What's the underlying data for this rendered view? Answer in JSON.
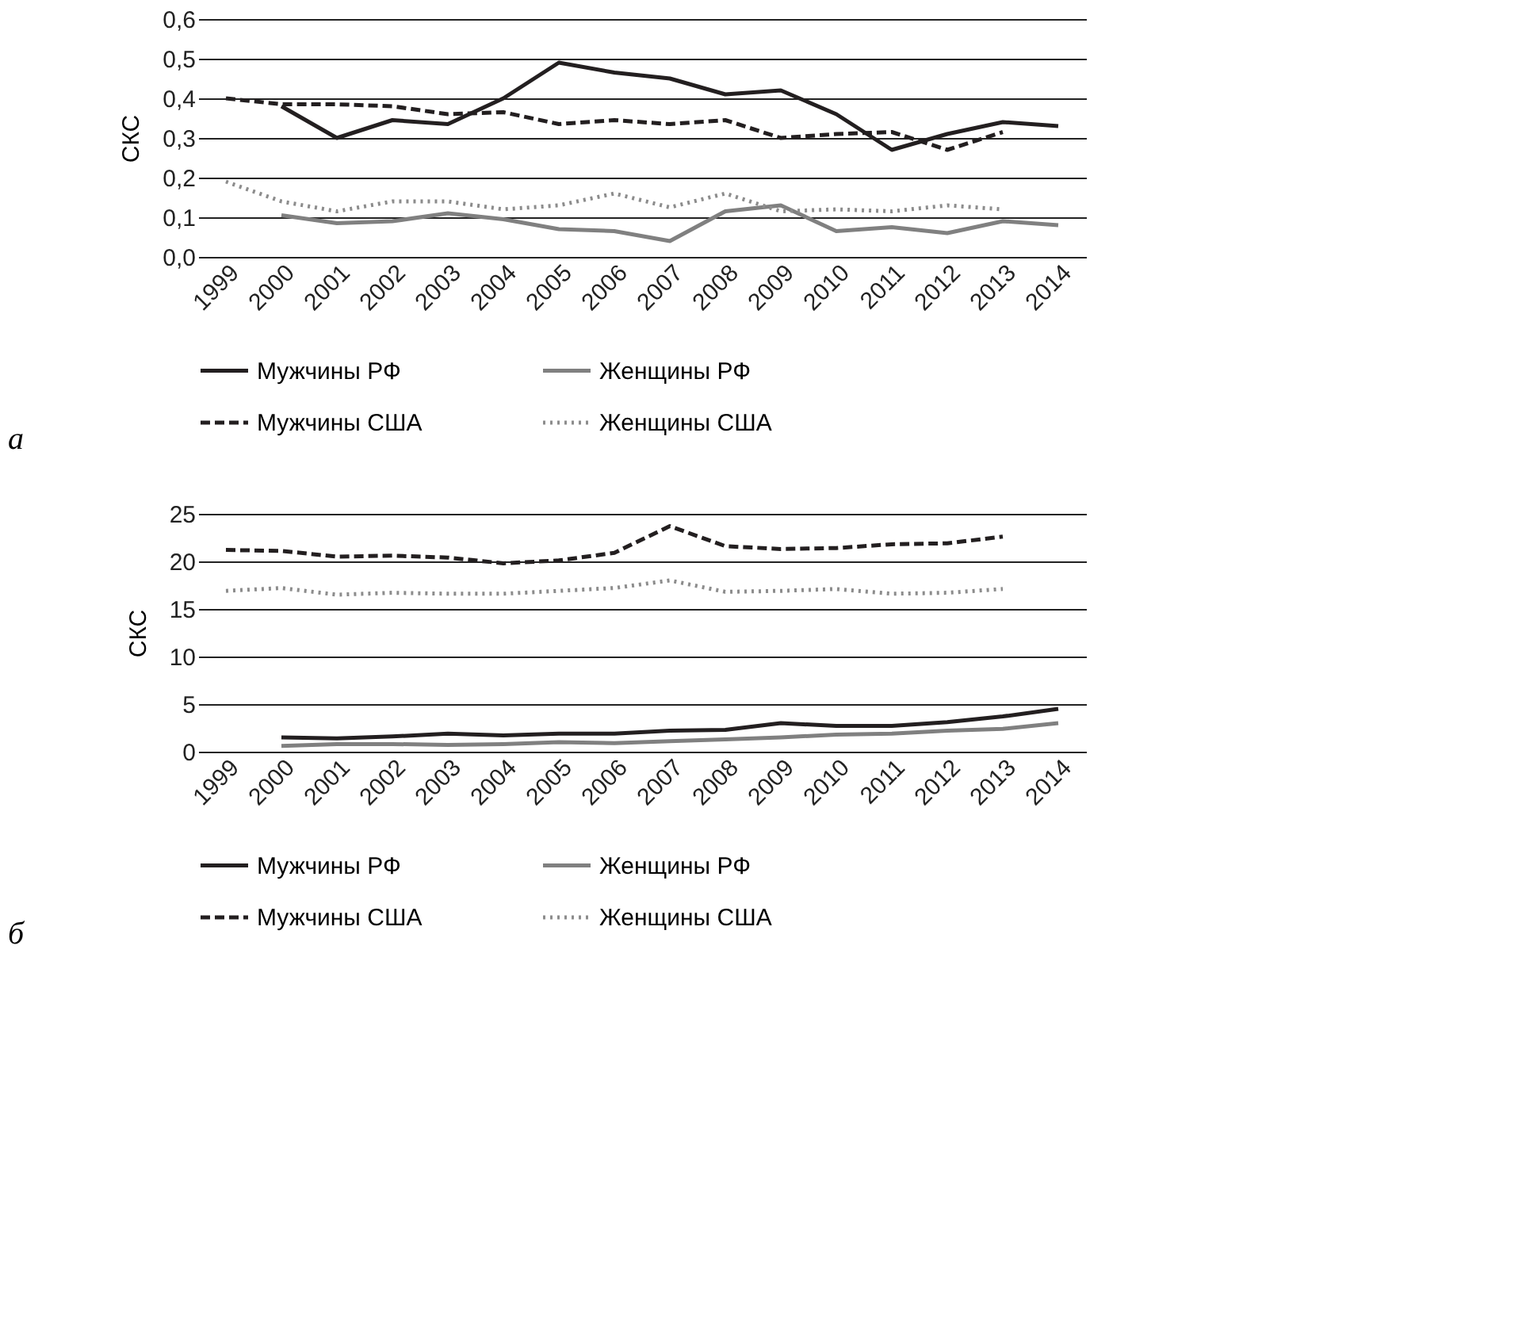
{
  "chart_data": [
    {
      "type": "line",
      "ylabel": "СКС",
      "annotations": [
        "а"
      ],
      "grid": "y",
      "legend": "bottom",
      "marker": "none",
      "categories": [
        "1999",
        "2000",
        "2001",
        "2002",
        "2003",
        "2004",
        "2005",
        "2006",
        "2007",
        "2008",
        "2009",
        "2010",
        "2011",
        "2012",
        "2013",
        "2014"
      ],
      "ylim": [
        0,
        0.6
      ],
      "yticks": [
        {
          "value": 0,
          "label": "0,0"
        },
        {
          "value": 0.1,
          "label": "0,1"
        },
        {
          "value": 0.2,
          "label": "0,2"
        },
        {
          "value": 0.3,
          "label": "0,3"
        },
        {
          "value": 0.4,
          "label": "0,4"
        },
        {
          "value": 0.5,
          "label": "0,5"
        },
        {
          "value": 0.6,
          "label": "0,6"
        }
      ],
      "series": [
        {
          "name": "Мужчины РФ",
          "color": "#231f20",
          "line_style": "solid",
          "values": [
            null,
            0.38,
            0.3,
            0.345,
            0.335,
            0.4,
            0.49,
            0.465,
            0.45,
            0.41,
            0.42,
            0.36,
            0.27,
            0.31,
            0.34,
            0.33
          ]
        },
        {
          "name": "Женщины РФ",
          "color": "#808080",
          "line_style": "solid",
          "values": [
            null,
            0.105,
            0.085,
            0.09,
            0.11,
            0.095,
            0.07,
            0.065,
            0.04,
            0.115,
            0.13,
            0.065,
            0.075,
            0.06,
            0.09,
            0.08
          ]
        },
        {
          "name": "Мужчины США",
          "color": "#231f20",
          "line_style": "dashed",
          "values": [
            0.4,
            0.385,
            0.385,
            0.38,
            0.36,
            0.365,
            0.335,
            0.345,
            0.335,
            0.345,
            0.3,
            0.31,
            0.315,
            0.27,
            0.315,
            null
          ]
        },
        {
          "name": "Женщины США",
          "color": "#8c8c8c",
          "line_style": "dotted",
          "values": [
            0.19,
            0.14,
            0.115,
            0.14,
            0.14,
            0.12,
            0.13,
            0.16,
            0.125,
            0.16,
            0.115,
            0.12,
            0.115,
            0.13,
            0.12,
            null
          ]
        }
      ]
    },
    {
      "type": "line",
      "ylabel": "СКС",
      "annotations": [
        "б"
      ],
      "grid": "y",
      "legend": "bottom",
      "marker": "none",
      "categories": [
        "1999",
        "2000",
        "2001",
        "2002",
        "2003",
        "2004",
        "2005",
        "2006",
        "2007",
        "2008",
        "2009",
        "2010",
        "2011",
        "2012",
        "2013",
        "2014"
      ],
      "ylim": [
        0,
        25
      ],
      "yticks": [
        0,
        5,
        10,
        15,
        20,
        25
      ],
      "series": [
        {
          "name": "Мужчины РФ",
          "color": "#231f20",
          "line_style": "solid",
          "values": [
            null,
            1.5,
            1.4,
            1.6,
            1.9,
            1.7,
            1.9,
            1.9,
            2.2,
            2.3,
            3.0,
            2.7,
            2.7,
            3.1,
            3.7,
            4.5
          ]
        },
        {
          "name": "Женщины РФ",
          "color": "#808080",
          "line_style": "solid",
          "values": [
            null,
            0.6,
            0.8,
            0.8,
            0.7,
            0.8,
            1.0,
            0.9,
            1.1,
            1.3,
            1.5,
            1.8,
            1.9,
            2.2,
            2.4,
            3.0
          ]
        },
        {
          "name": "Мужчины США",
          "color": "#231f20",
          "line_style": "dashed",
          "values": [
            21.2,
            21.1,
            20.5,
            20.6,
            20.4,
            19.8,
            20.1,
            20.9,
            23.7,
            21.6,
            21.3,
            21.4,
            21.8,
            21.9,
            22.6,
            null
          ]
        },
        {
          "name": "Женщины США",
          "color": "#8c8c8c",
          "line_style": "dotted",
          "values": [
            16.9,
            17.2,
            16.5,
            16.7,
            16.6,
            16.6,
            16.9,
            17.2,
            18.0,
            16.8,
            16.9,
            17.1,
            16.6,
            16.7,
            17.1,
            null
          ]
        }
      ]
    }
  ]
}
